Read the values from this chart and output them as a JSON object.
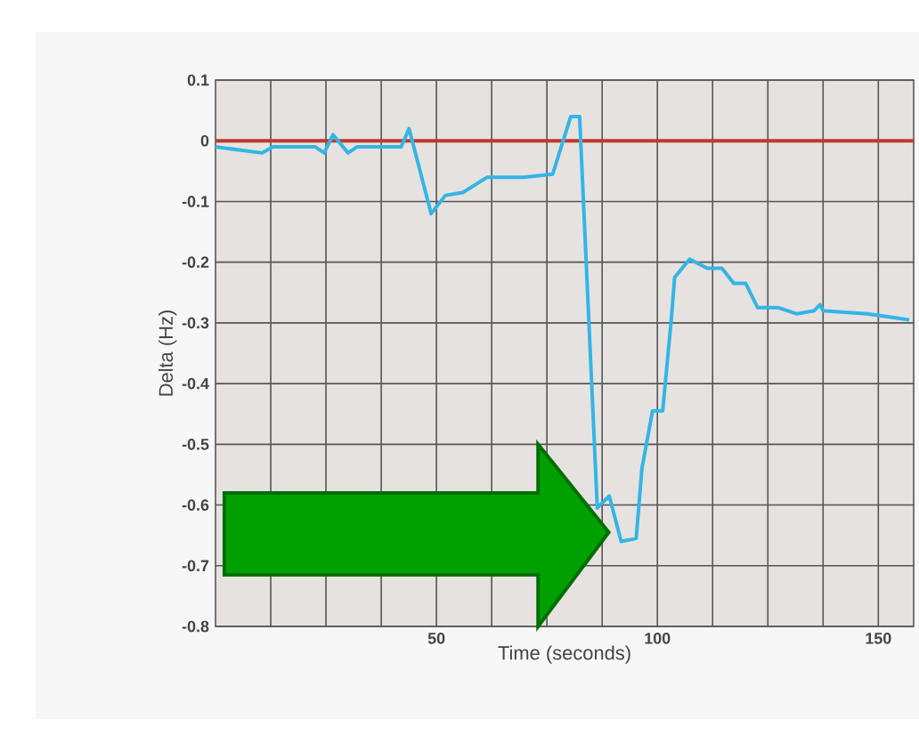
{
  "chart_data": {
    "type": "line",
    "xlabel": "Time (seconds)",
    "ylabel": "Delta (Hz)",
    "xlim": [
      0,
      158
    ],
    "ylim": [
      -0.8,
      0.1
    ],
    "xticks": [
      {
        "value": 12.5,
        "label": null
      },
      {
        "value": 25,
        "label": null
      },
      {
        "value": 37.5,
        "label": null
      },
      50,
      {
        "value": 62.5,
        "label": null
      },
      {
        "value": 75,
        "label": null
      },
      {
        "value": 87.5,
        "label": null
      },
      100,
      {
        "value": 112.5,
        "label": null
      },
      {
        "value": 125,
        "label": null
      },
      {
        "value": 137.5,
        "label": null
      },
      150
    ],
    "yticks": [
      0.1,
      0,
      -0.1,
      -0.2,
      -0.3,
      -0.4,
      -0.5,
      -0.6,
      -0.7,
      -0.8
    ],
    "grid": true,
    "ref_lines": [
      {
        "axis": "y",
        "value": 0,
        "color": "#c0392b"
      }
    ],
    "series": [
      {
        "color": "#33b5e5",
        "x": [
          0,
          10.5,
          13,
          22.6,
          24.6,
          26.6,
          30,
          32,
          42,
          43.8,
          48.8,
          52,
          56,
          61.5,
          69.6,
          76.3,
          80.4,
          82.4,
          86.4,
          89.1,
          91.8,
          95.2,
          96.5,
          98.9,
          101.2,
          103.2,
          103.9,
          107.3,
          111.3,
          114.6,
          117.3,
          120,
          122.7,
          127.4,
          131.5,
          135.5,
          136.8,
          137.5,
          147.6,
          157
        ],
        "values": [
          -0.01,
          -0.02,
          -0.01,
          -0.01,
          -0.02,
          0.01,
          -0.02,
          -0.01,
          -0.01,
          0.02,
          -0.12,
          -0.09,
          -0.085,
          -0.06,
          -0.06,
          -0.055,
          0.04,
          0.04,
          -0.605,
          -0.585,
          -0.66,
          -0.655,
          -0.54,
          -0.445,
          -0.445,
          -0.29,
          -0.225,
          -0.195,
          -0.21,
          -0.21,
          -0.235,
          -0.235,
          -0.275,
          -0.275,
          -0.285,
          -0.28,
          -0.27,
          -0.28,
          -0.285,
          -0.295
        ]
      }
    ]
  }
}
